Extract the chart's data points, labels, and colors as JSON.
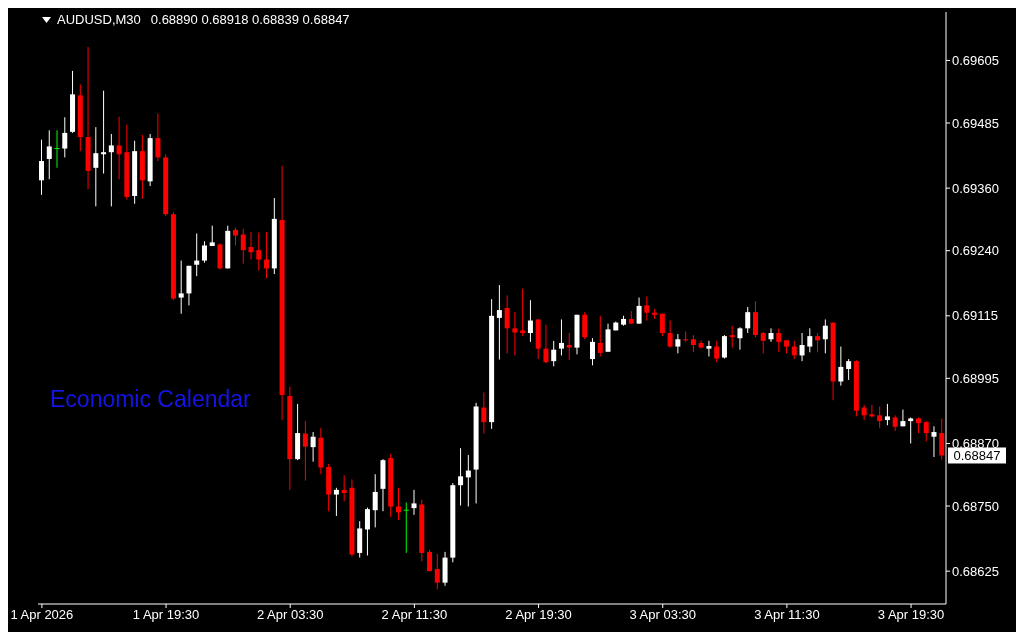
{
  "chart_data": {
    "type": "candlestick",
    "title": "AUDUSD,M30",
    "subtitle": "0.68890 0.68918 0.68839 0.68847",
    "annotations": [
      "Economic Calendar",
      "0.68847"
    ],
    "categories": [
      "1 Apr 2026",
      null,
      null,
      null,
      null,
      null,
      null,
      null,
      null,
      null,
      null,
      null,
      null,
      null,
      null,
      null,
      "1 Apr 19:30",
      null,
      null,
      null,
      null,
      null,
      null,
      null,
      null,
      null,
      null,
      null,
      null,
      null,
      null,
      null,
      "2 Apr 03:30",
      null,
      null,
      null,
      null,
      null,
      null,
      null,
      null,
      null,
      null,
      null,
      null,
      null,
      null,
      null,
      "2 Apr 11:30",
      null,
      null,
      null,
      null,
      null,
      null,
      null,
      null,
      null,
      null,
      null,
      null,
      null,
      null,
      null,
      "2 Apr 19:30",
      null,
      null,
      null,
      null,
      null,
      null,
      null,
      null,
      null,
      null,
      null,
      null,
      null,
      null,
      null,
      "3 Apr 03:30",
      null,
      null,
      null,
      null,
      null,
      null,
      null,
      null,
      null,
      null,
      null,
      null,
      null,
      null,
      null,
      "3 Apr 11:30",
      null,
      null,
      null,
      null,
      null,
      null,
      null,
      null,
      null,
      null,
      null,
      null,
      null,
      null,
      null,
      "3 Apr 19:30",
      null,
      null,
      null,
      null
    ],
    "ohlc": [
      [
        0.69375,
        0.69453,
        0.69347,
        0.69412
      ],
      [
        0.69416,
        0.69471,
        0.69377,
        0.6944
      ],
      [
        0.69436,
        0.69471,
        0.69399,
        0.69436
      ],
      [
        0.69436,
        0.69496,
        0.69419,
        0.69466
      ],
      [
        0.69468,
        0.69585,
        0.69466,
        0.6954
      ],
      [
        0.69538,
        0.69559,
        0.69431,
        0.69458
      ],
      [
        0.69458,
        0.69631,
        0.69358,
        0.69393
      ],
      [
        0.69399,
        0.69477,
        0.69325,
        0.69427
      ],
      [
        0.69425,
        0.69547,
        0.69388,
        0.69429
      ],
      [
        0.69429,
        0.69464,
        0.69325,
        0.69442
      ],
      [
        0.69442,
        0.69497,
        0.69377,
        0.69425
      ],
      [
        0.69429,
        0.69482,
        0.69338,
        0.69343
      ],
      [
        0.69345,
        0.69451,
        0.6933,
        0.69431
      ],
      [
        0.69431,
        0.69462,
        0.6934,
        0.69375
      ],
      [
        0.69373,
        0.69464,
        0.69364,
        0.69456
      ],
      [
        0.69456,
        0.69503,
        0.69412,
        0.69419
      ],
      [
        0.69419,
        0.69425,
        0.69306,
        0.6931
      ],
      [
        0.6931,
        0.69314,
        0.69145,
        0.69148
      ],
      [
        0.6915,
        0.69221,
        0.69119,
        0.69158
      ],
      [
        0.69158,
        0.69211,
        0.69135,
        0.69211
      ],
      [
        0.69213,
        0.69273,
        0.69191,
        0.69221
      ],
      [
        0.69221,
        0.69258,
        0.69217,
        0.6925
      ],
      [
        0.69249,
        0.69288,
        0.69249,
        0.69256
      ],
      [
        0.69252,
        0.69254,
        0.69204,
        0.69206
      ],
      [
        0.69206,
        0.69288,
        0.69206,
        0.69278
      ],
      [
        0.6928,
        0.69284,
        0.6925,
        0.69269
      ],
      [
        0.69271,
        0.69282,
        0.69215,
        0.69241
      ],
      [
        0.69247,
        0.69276,
        0.69223,
        0.69237
      ],
      [
        0.69241,
        0.69275,
        0.69202,
        0.69223
      ],
      [
        0.69223,
        0.69276,
        0.69187,
        0.69206
      ],
      [
        0.69206,
        0.69341,
        0.69195,
        0.69301
      ],
      [
        0.69299,
        0.69403,
        0.68915,
        0.68963
      ],
      [
        0.68961,
        0.68979,
        0.68781,
        0.6884
      ],
      [
        0.6884,
        0.68946,
        0.68838,
        0.6889
      ],
      [
        0.68889,
        0.68913,
        0.68799,
        0.68864
      ],
      [
        0.68863,
        0.68892,
        0.68835,
        0.68883
      ],
      [
        0.68881,
        0.689,
        0.68811,
        0.68824
      ],
      [
        0.68825,
        0.68831,
        0.6874,
        0.68772
      ],
      [
        0.68772,
        0.68785,
        0.68731,
        0.68781
      ],
      [
        0.68781,
        0.68809,
        0.68759,
        0.68775
      ],
      [
        0.68785,
        0.68801,
        0.68653,
        0.68657
      ],
      [
        0.6866,
        0.68721,
        0.68651,
        0.68707
      ],
      [
        0.68705,
        0.68747,
        0.68655,
        0.68744
      ],
      [
        0.68742,
        0.68811,
        0.68709,
        0.68777
      ],
      [
        0.68783,
        0.6884,
        0.6874,
        0.68838
      ],
      [
        0.68842,
        0.6885,
        0.68729,
        0.68749
      ],
      [
        0.68749,
        0.68785,
        0.68723,
        0.68738
      ],
      [
        0.68742,
        0.68757,
        0.6866,
        0.68742
      ],
      [
        0.68746,
        0.68781,
        0.68733,
        0.68755
      ],
      [
        0.68753,
        0.68762,
        0.68644,
        0.6866
      ],
      [
        0.68662,
        0.68666,
        0.68625,
        0.68625
      ],
      [
        0.68629,
        0.68658,
        0.6859,
        0.68603
      ],
      [
        0.68603,
        0.68662,
        0.68597,
        0.68651
      ],
      [
        0.68651,
        0.68794,
        0.68642,
        0.6879
      ],
      [
        0.6879,
        0.68861,
        0.68751,
        0.68807
      ],
      [
        0.68805,
        0.68848,
        0.68749,
        0.68818
      ],
      [
        0.6882,
        0.68948,
        0.68755,
        0.68941
      ],
      [
        0.68939,
        0.68968,
        0.68889,
        0.68911
      ],
      [
        0.68911,
        0.69147,
        0.68898,
        0.69115
      ],
      [
        0.69111,
        0.69174,
        0.69031,
        0.69126
      ],
      [
        0.6913,
        0.69154,
        0.69043,
        0.69091
      ],
      [
        0.69091,
        0.69122,
        0.69039,
        0.69083
      ],
      [
        0.69087,
        0.69167,
        0.69076,
        0.69082
      ],
      [
        0.69082,
        0.69145,
        0.69065,
        0.69106
      ],
      [
        0.69108,
        0.69108,
        0.69032,
        0.69052
      ],
      [
        0.69052,
        0.69098,
        0.69024,
        0.69026
      ],
      [
        0.69028,
        0.69067,
        0.69018,
        0.6905
      ],
      [
        0.69052,
        0.69108,
        0.69039,
        0.69063
      ],
      [
        0.69059,
        0.69082,
        0.6903,
        0.69054
      ],
      [
        0.69054,
        0.69117,
        0.69041,
        0.69117
      ],
      [
        0.69117,
        0.69122,
        0.6907,
        0.69074
      ],
      [
        0.69032,
        0.69072,
        0.6902,
        0.69065
      ],
      [
        0.69063,
        0.69115,
        0.69037,
        0.69044
      ],
      [
        0.69046,
        0.691,
        0.69046,
        0.69089
      ],
      [
        0.69087,
        0.69104,
        0.69087,
        0.69102
      ],
      [
        0.69098,
        0.69115,
        0.69096,
        0.69109
      ],
      [
        0.69109,
        0.69124,
        0.691,
        0.691
      ],
      [
        0.691,
        0.6915,
        0.691,
        0.69134
      ],
      [
        0.69135,
        0.69152,
        0.69106,
        0.69121
      ],
      [
        0.69121,
        0.69128,
        0.69109,
        0.69117
      ],
      [
        0.69119,
        0.69119,
        0.69076,
        0.69082
      ],
      [
        0.69082,
        0.69106,
        0.69054,
        0.69056
      ],
      [
        0.69056,
        0.6908,
        0.69043,
        0.6907
      ],
      [
        0.6907,
        0.69085,
        0.69065,
        0.69068
      ],
      [
        0.6907,
        0.69078,
        0.69045,
        0.69059
      ],
      [
        0.69063,
        0.69068,
        0.69052,
        0.69054
      ],
      [
        0.69052,
        0.69067,
        0.69037,
        0.69057
      ],
      [
        0.69056,
        0.69067,
        0.69026,
        0.69033
      ],
      [
        0.69035,
        0.69078,
        0.69033,
        0.69076
      ],
      [
        0.69078,
        0.69096,
        0.69054,
        0.69074
      ],
      [
        0.69072,
        0.69093,
        0.6905,
        0.69091
      ],
      [
        0.69091,
        0.69132,
        0.69082,
        0.69122
      ],
      [
        0.69122,
        0.69143,
        0.69074,
        0.69078
      ],
      [
        0.69082,
        0.69084,
        0.69043,
        0.69067
      ],
      [
        0.6907,
        0.69091,
        0.69065,
        0.69082
      ],
      [
        0.69082,
        0.69091,
        0.69046,
        0.69065
      ],
      [
        0.69068,
        0.69068,
        0.69043,
        0.69056
      ],
      [
        0.69056,
        0.69067,
        0.69032,
        0.69039
      ],
      [
        0.69039,
        0.69082,
        0.69028,
        0.69059
      ],
      [
        0.69056,
        0.69091,
        0.69045,
        0.69076
      ],
      [
        0.69076,
        0.69082,
        0.69045,
        0.69068
      ],
      [
        0.6907,
        0.69108,
        0.69043,
        0.69096
      ],
      [
        0.69102,
        0.69102,
        0.68953,
        0.68989
      ],
      [
        0.68989,
        0.69056,
        0.68981,
        0.69017
      ],
      [
        0.69013,
        0.69032,
        0.68992,
        0.69028
      ],
      [
        0.69028,
        0.6903,
        0.68922,
        0.68933
      ],
      [
        0.68939,
        0.68944,
        0.68915,
        0.68924
      ],
      [
        0.68926,
        0.68944,
        0.6892,
        0.68922
      ],
      [
        0.68924,
        0.68941,
        0.689,
        0.68913
      ],
      [
        0.68915,
        0.68946,
        0.68905,
        0.68922
      ],
      [
        0.6892,
        0.68924,
        0.68894,
        0.68902
      ],
      [
        0.68903,
        0.68935,
        0.68903,
        0.68913
      ],
      [
        0.68913,
        0.6892,
        0.6887,
        0.68918
      ],
      [
        0.68918,
        0.6892,
        0.6889,
        0.68909
      ],
      [
        0.68911,
        0.68913,
        0.68874,
        0.6889
      ],
      [
        0.68883,
        0.68903,
        0.68844,
        0.68892
      ],
      [
        0.6889,
        0.68918,
        0.68839,
        0.68847
      ]
    ],
    "colors": [
      "#ffffff",
      "#ffffff",
      "#00ff00",
      "#ffffff",
      "#ffffff",
      "#ff0000",
      "#ff0000",
      "#ffffff",
      "#ffffff",
      "#ffffff",
      "#ff0000",
      "#ff0000",
      "#ffffff",
      "#ff0000",
      "#ffffff",
      "#ff0000",
      "#ff0000",
      "#ff0000",
      "#ffffff",
      "#ffffff",
      "#ffffff",
      "#ffffff",
      "#ffffff",
      "#ff0000",
      "#ffffff",
      "#ff0000",
      "#ff0000",
      "#ff0000",
      "#ff0000",
      "#ff0000",
      "#ffffff",
      "#ff0000",
      "#ff0000",
      "#ffffff",
      "#ff0000",
      "#ffffff",
      "#ff0000",
      "#ff0000",
      "#ffffff",
      "#ff0000",
      "#ff0000",
      "#ffffff",
      "#ffffff",
      "#ffffff",
      "#ffffff",
      "#ff0000",
      "#ff0000",
      "#00ff00",
      "#ffffff",
      "#ff0000",
      "#ff0000",
      "#ff0000",
      "#ffffff",
      "#ffffff",
      "#ffffff",
      "#ffffff",
      "#ffffff",
      "#ff0000",
      "#ffffff",
      "#ffffff",
      "#ff0000",
      "#ff0000",
      "#ff0000",
      "#ffffff",
      "#ff0000",
      "#ff0000",
      "#ffffff",
      "#ffffff",
      "#ff0000",
      "#ffffff",
      "#ff0000",
      "#ffffff",
      "#ff0000",
      "#ffffff",
      "#ffffff",
      "#ffffff",
      "#ff0000",
      "#ffffff",
      "#ff0000",
      "#ff0000",
      "#ff0000",
      "#ff0000",
      "#ffffff",
      "#ff0000",
      "#ff0000",
      "#ff0000",
      "#ffffff",
      "#ff0000",
      "#ffffff",
      "#ff0000",
      "#ffffff",
      "#ffffff",
      "#ff0000",
      "#ff0000",
      "#ffffff",
      "#ff0000",
      "#ff0000",
      "#ff0000",
      "#ffffff",
      "#ffffff",
      "#ff0000",
      "#ffffff",
      "#ff0000",
      "#ffffff",
      "#ffffff",
      "#ff0000",
      "#ff0000",
      "#ff0000",
      "#ff0000",
      "#ffffff",
      "#ff0000",
      "#ffffff",
      "#ffffff",
      "#ff0000",
      "#ff0000",
      "#ffffff",
      "#ff0000"
    ],
    "ylim": [
      0.68562,
      0.69698
    ],
    "yticks": [
      0.68625,
      {
        "value": 0.6875,
        "label": "0.68750"
      },
      {
        "value": 0.6887,
        "label": "0.68870"
      },
      0.68995,
      0.69115,
      {
        "value": 0.6924,
        "label": "0.69240"
      },
      {
        "value": 0.6936,
        "label": "0.69360"
      },
      0.69485,
      0.69605
    ]
  }
}
